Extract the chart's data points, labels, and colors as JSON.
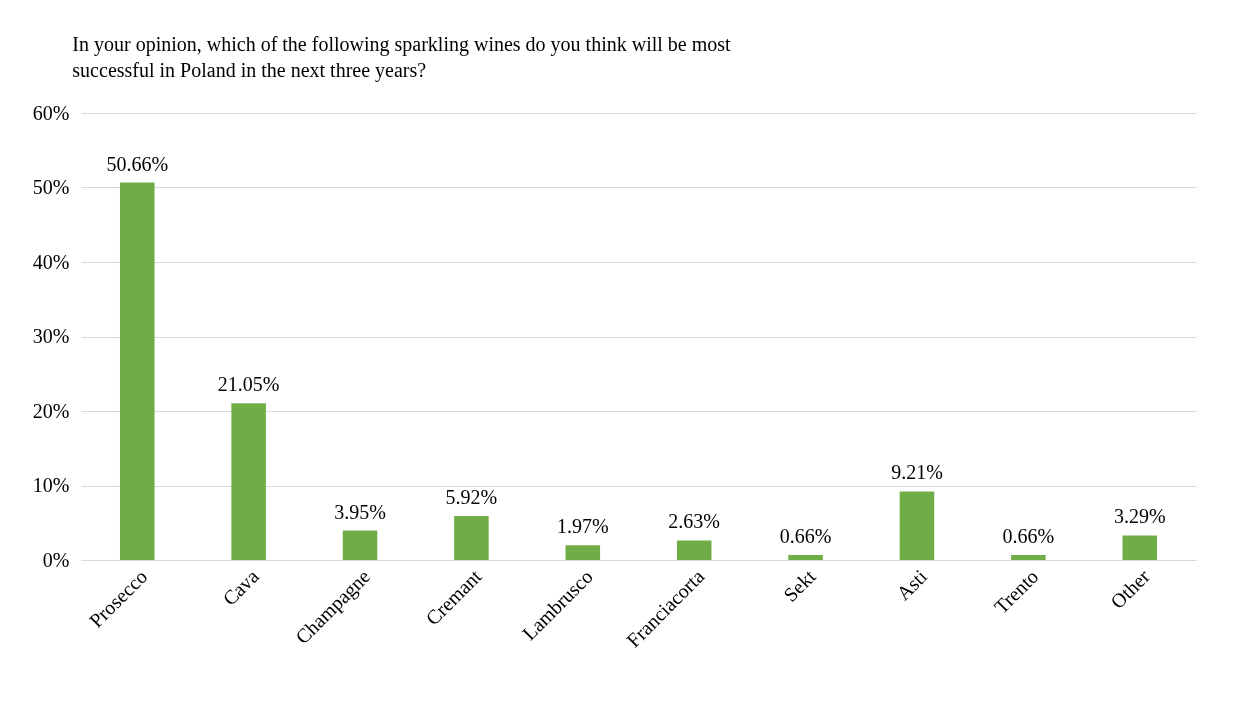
{
  "chart_data": {
    "type": "bar",
    "title": "In your opinion, which of the following sparkling wines do you think will be most successful in Poland in the next three years?",
    "categories": [
      "Prosecco",
      "Cava",
      "Champagne",
      "Cremant",
      "Lambrusco",
      "Franciacorta",
      "Sekt",
      "Asti",
      "Trento",
      "Other"
    ],
    "values": [
      50.66,
      21.05,
      3.95,
      5.92,
      1.97,
      2.63,
      0.66,
      9.21,
      0.66,
      3.29
    ],
    "value_labels": [
      "50.66%",
      "21.05%",
      "3.95%",
      "5.92%",
      "1.97%",
      "2.63%",
      "0.66%",
      "9.21%",
      "0.66%",
      "3.29%"
    ],
    "color": "#70ad47",
    "ylim": [
      0,
      60
    ],
    "yticks": [
      {
        "value": 0,
        "label": "0%"
      },
      {
        "value": 10,
        "label": "10%"
      },
      {
        "value": 20,
        "label": "20%"
      },
      {
        "value": 30,
        "label": "30%"
      },
      {
        "value": 40,
        "label": "40%"
      },
      {
        "value": 50,
        "label": "50%"
      },
      {
        "value": 60,
        "label": "60%"
      }
    ],
    "grid": "y"
  }
}
